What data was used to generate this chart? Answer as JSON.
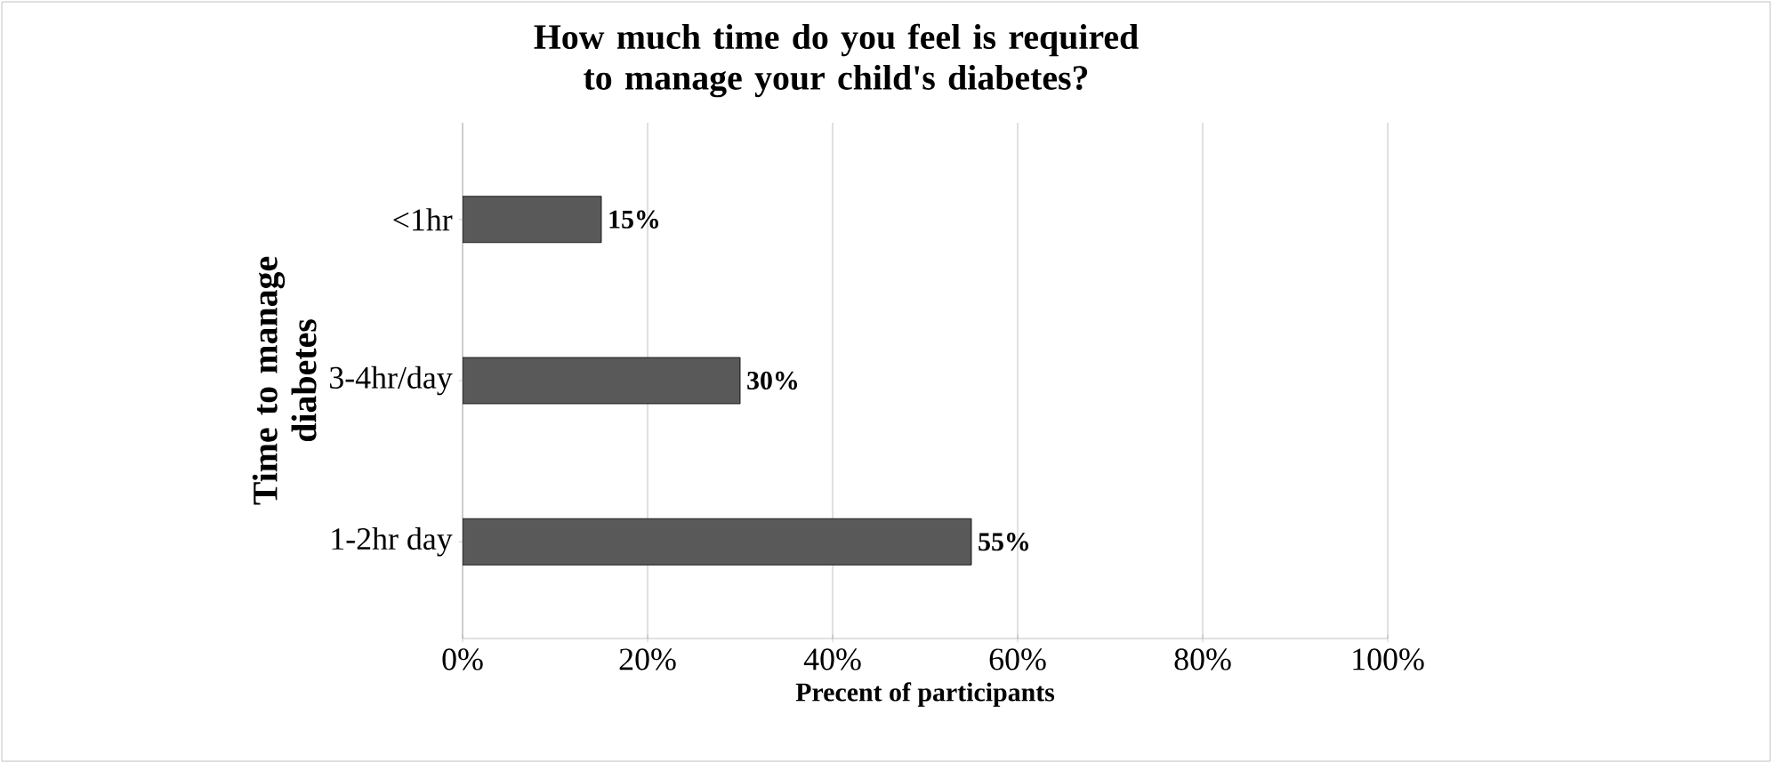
{
  "chart_data": {
    "type": "bar",
    "orientation": "horizontal",
    "title": "How much time do you feel is required to manage your child's diabetes?",
    "xlabel": "Precent of participants",
    "ylabel": "Time to manage diabetes",
    "categories": [
      "<1hr",
      "3-4hr/day",
      "1-2hr day"
    ],
    "values": [
      15,
      30,
      55
    ],
    "value_labels": [
      "15%",
      "30%",
      "55%"
    ],
    "color": "#595959",
    "xlim": [
      0,
      100
    ],
    "xticks": [
      {
        "value": 0,
        "label": "0%"
      },
      {
        "value": 20,
        "label": "20%"
      },
      {
        "value": 40,
        "label": "40%"
      },
      {
        "value": 60,
        "label": "60%"
      },
      {
        "value": 80,
        "label": "80%"
      },
      {
        "value": 100,
        "label": "100%"
      }
    ],
    "grid": "x"
  }
}
